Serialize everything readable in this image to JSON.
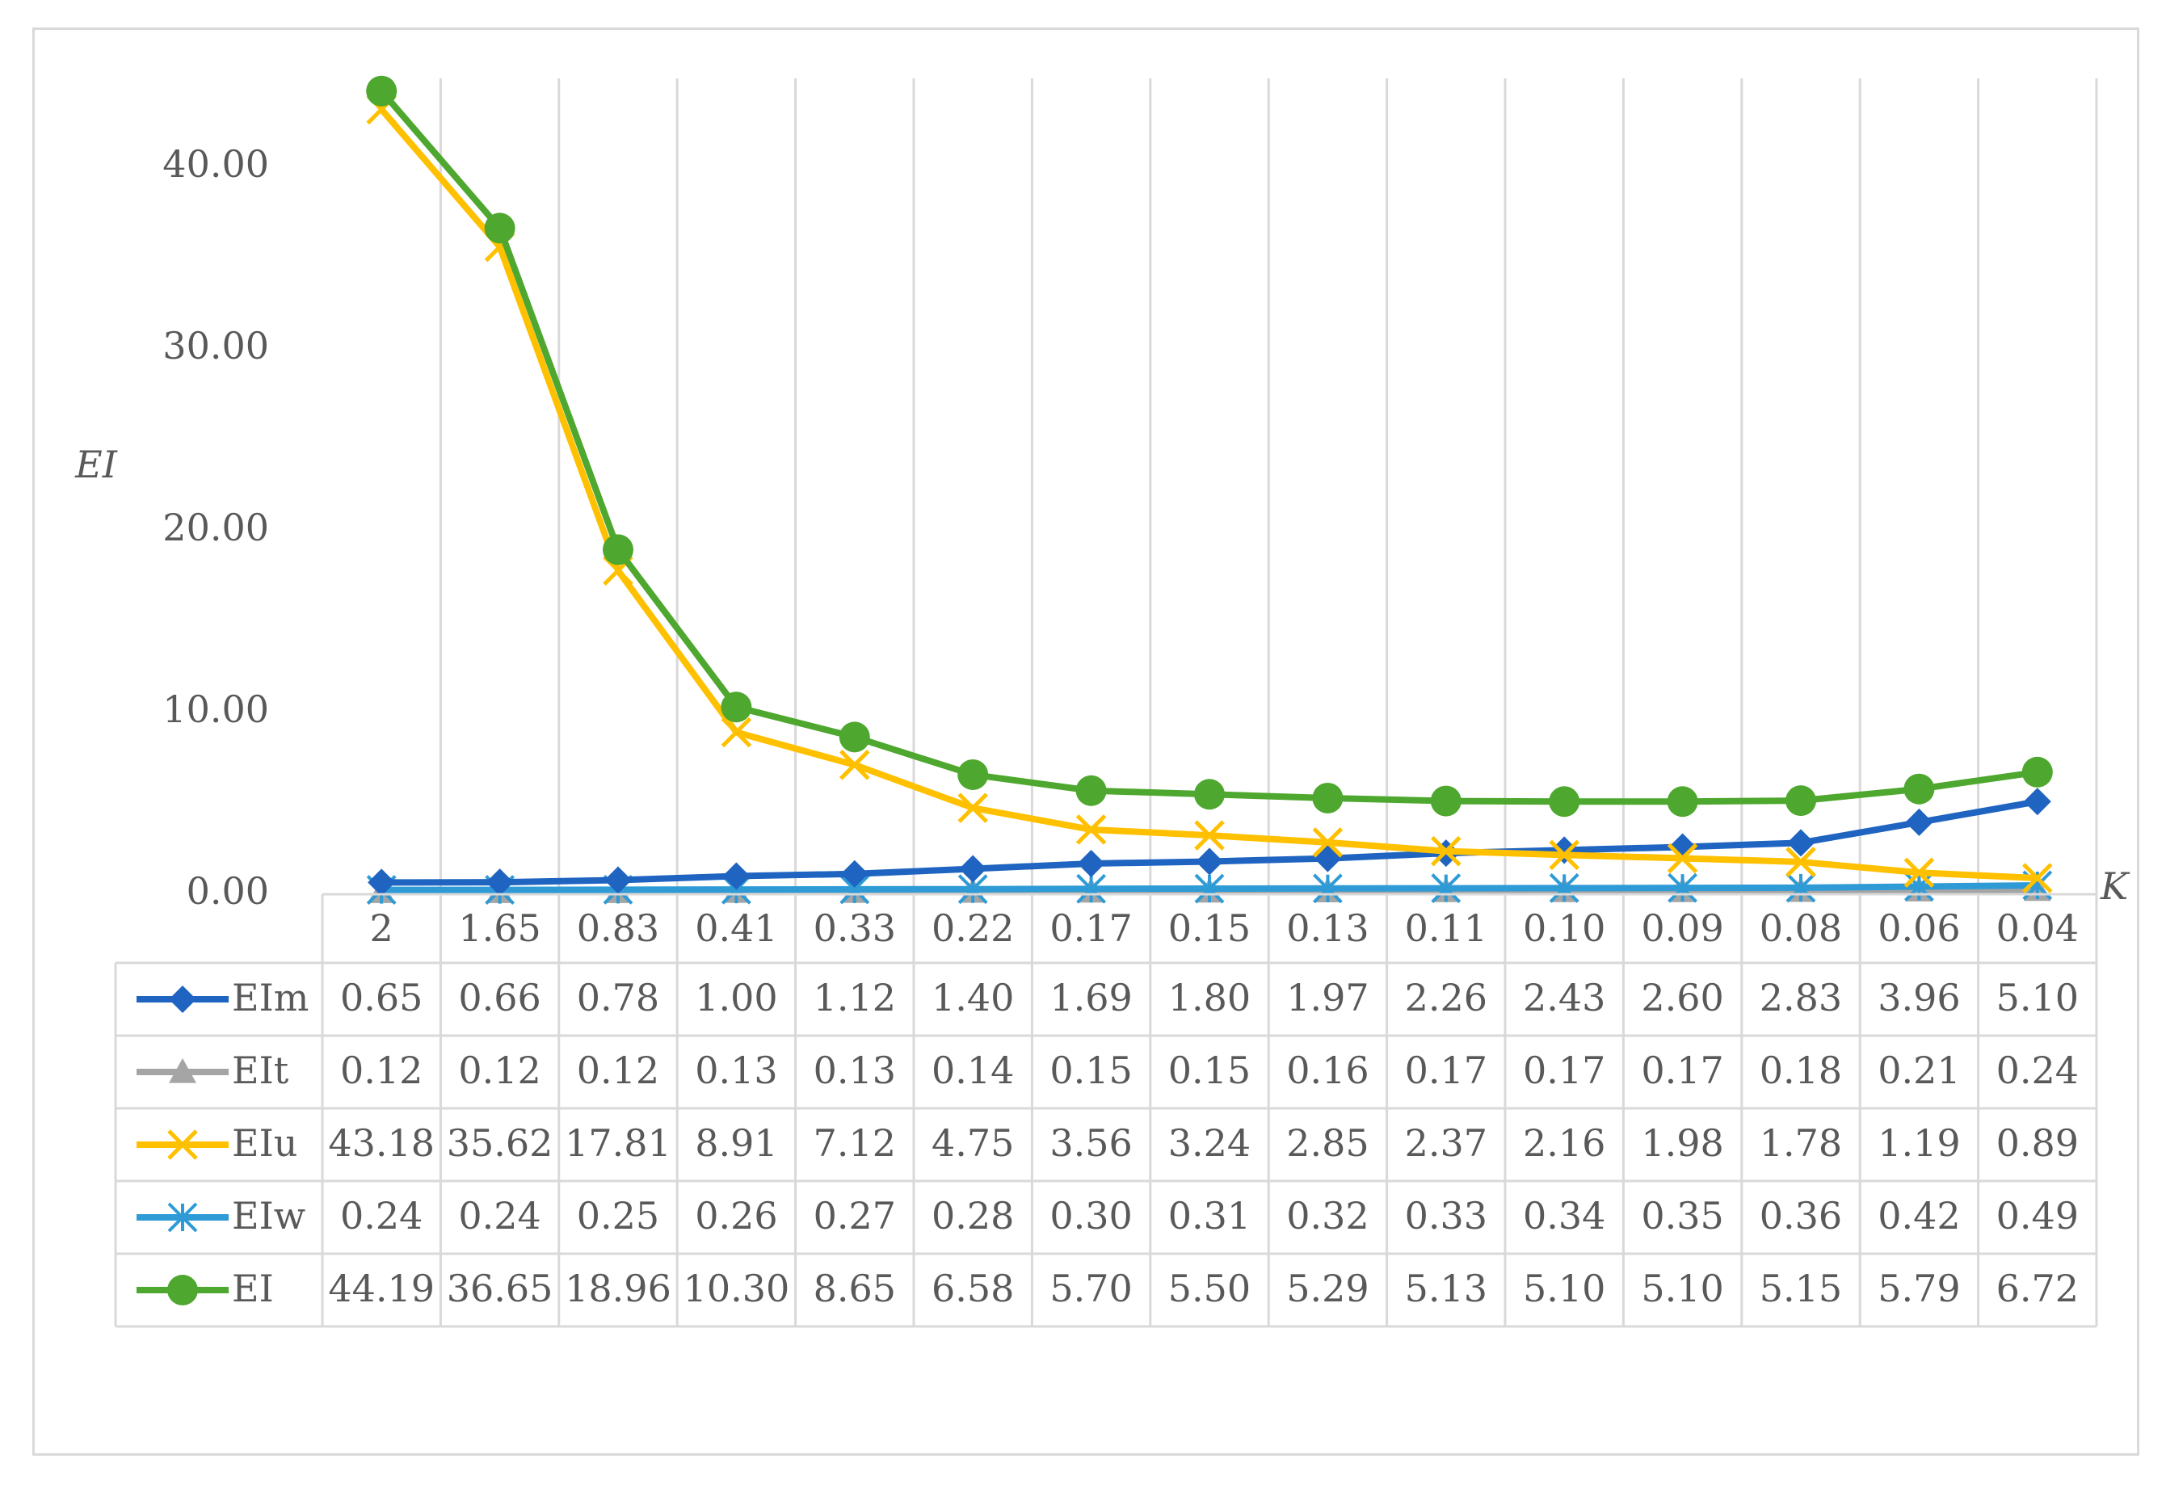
{
  "chart_data": {
    "type": "line",
    "xlabel": "K",
    "ylabel": "EI",
    "ylim": [
      0,
      44
    ],
    "yticks": [
      "0.00",
      "10.00",
      "20.00",
      "30.00",
      "40.00"
    ],
    "ytick_values": [
      0,
      10,
      20,
      30,
      40
    ],
    "categories": [
      "2",
      "1.65",
      "0.83",
      "0.41",
      "0.33",
      "0.22",
      "0.17",
      "0.15",
      "0.13",
      "0.11",
      "0.10",
      "0.09",
      "0.08",
      "0.06",
      "0.04"
    ],
    "grid": "vertical",
    "legend_placement": "data-table",
    "series": [
      {
        "name": "EIm",
        "color": "#1f64c0",
        "marker": "diamond",
        "values": [
          0.65,
          0.66,
          0.78,
          1.0,
          1.12,
          1.4,
          1.69,
          1.8,
          1.97,
          2.26,
          2.43,
          2.6,
          2.83,
          3.96,
          5.1
        ],
        "labels": [
          "0.65",
          "0.66",
          "0.78",
          "1.00",
          "1.12",
          "1.40",
          "1.69",
          "1.80",
          "1.97",
          "2.26",
          "2.43",
          "2.60",
          "2.83",
          "3.96",
          "5.10"
        ]
      },
      {
        "name": "EIt",
        "color": "#a5a5a5",
        "marker": "triangle",
        "values": [
          0.12,
          0.12,
          0.12,
          0.13,
          0.13,
          0.14,
          0.15,
          0.15,
          0.16,
          0.17,
          0.17,
          0.17,
          0.18,
          0.21,
          0.24
        ],
        "labels": [
          "0.12",
          "0.12",
          "0.12",
          "0.13",
          "0.13",
          "0.14",
          "0.15",
          "0.15",
          "0.16",
          "0.17",
          "0.17",
          "0.17",
          "0.18",
          "0.21",
          "0.24"
        ]
      },
      {
        "name": "EIu",
        "color": "#ffc000",
        "marker": "x",
        "values": [
          43.18,
          35.62,
          17.81,
          8.91,
          7.12,
          4.75,
          3.56,
          3.24,
          2.85,
          2.37,
          2.16,
          1.98,
          1.78,
          1.19,
          0.89
        ],
        "labels": [
          "43.18",
          "35.62",
          "17.81",
          "8.91",
          "7.12",
          "4.75",
          "3.56",
          "3.24",
          "2.85",
          "2.37",
          "2.16",
          "1.98",
          "1.78",
          "1.19",
          "0.89"
        ]
      },
      {
        "name": "EIw",
        "color": "#2e9bd6",
        "marker": "asterisk",
        "values": [
          0.24,
          0.24,
          0.25,
          0.26,
          0.27,
          0.28,
          0.3,
          0.31,
          0.32,
          0.33,
          0.34,
          0.35,
          0.36,
          0.42,
          0.49
        ],
        "labels": [
          "0.24",
          "0.24",
          "0.25",
          "0.26",
          "0.27",
          "0.28",
          "0.30",
          "0.31",
          "0.32",
          "0.33",
          "0.34",
          "0.35",
          "0.36",
          "0.42",
          "0.49"
        ]
      },
      {
        "name": "EI",
        "color": "#4ea72e",
        "marker": "circle",
        "values": [
          44.19,
          36.65,
          18.96,
          10.3,
          8.65,
          6.58,
          5.7,
          5.5,
          5.29,
          5.13,
          5.1,
          5.1,
          5.15,
          5.79,
          6.72
        ],
        "labels": [
          "44.19",
          "36.65",
          "18.96",
          "10.30",
          "8.65",
          "6.58",
          "5.70",
          "5.50",
          "5.29",
          "5.13",
          "5.10",
          "5.10",
          "5.15",
          "5.79",
          "6.72"
        ]
      }
    ]
  }
}
